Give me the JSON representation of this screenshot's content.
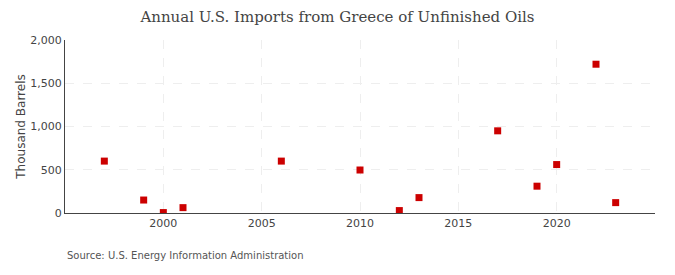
{
  "chart_data": {
    "type": "scatter",
    "title": "Annual U.S. Imports from Greece of Unfinished Oils",
    "ylabel": "Thousand Barrels",
    "annotation": "Source: U.S. Energy Information Administration",
    "x": [
      1997,
      1999,
      2000,
      2001,
      2006,
      2010,
      2012,
      2013,
      2017,
      2019,
      2020,
      2022,
      2023
    ],
    "values": [
      600,
      150,
      5,
      62,
      600,
      497,
      28,
      178,
      950,
      310,
      560,
      1720,
      120
    ],
    "color": "#cc0000",
    "marker": "square",
    "xlim": [
      1995,
      2025
    ],
    "xticks": [
      2000,
      2005,
      2010,
      2015,
      2020
    ],
    "ylim": [
      0,
      2000
    ],
    "yticks": [
      0,
      500,
      {
        "value": 1000,
        "label": "1,000"
      },
      {
        "value": 1500,
        "label": "1,500"
      },
      {
        "value": 2000,
        "label": "2,000"
      }
    ],
    "grid": true
  }
}
